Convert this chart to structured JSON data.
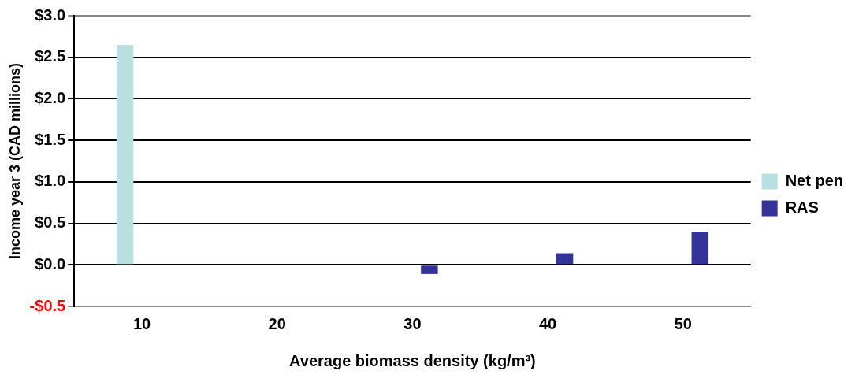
{
  "chart_data": {
    "type": "bar",
    "xlabel": "Average biomass density (kg/m³)",
    "ylabel": "Income year 3 (CAD millions)",
    "categories": [
      "10",
      "20",
      "30",
      "40",
      "50"
    ],
    "series": [
      {
        "name": "Net pen",
        "color": "#b8e0e2",
        "values": [
          2.65,
          null,
          null,
          null,
          null
        ]
      },
      {
        "name": "RAS",
        "color": "#333399",
        "values": [
          null,
          null,
          -0.11,
          0.14,
          0.4
        ]
      }
    ],
    "ylim": [
      -0.5,
      3.0
    ],
    "yticks": [
      {
        "value": -0.5,
        "label": "-$0.5"
      },
      {
        "value": 0,
        "label": "$0.0"
      },
      {
        "value": 0.5,
        "label": "$0.5"
      },
      {
        "value": 1,
        "label": "$1.0"
      },
      {
        "value": 1.5,
        "label": "$1.5"
      },
      {
        "value": 2,
        "label": "$2.0"
      },
      {
        "value": 2.5,
        "label": "$2.5"
      },
      {
        "value": 3,
        "label": "$3.0"
      }
    ],
    "grid": "y",
    "legend": "right"
  }
}
